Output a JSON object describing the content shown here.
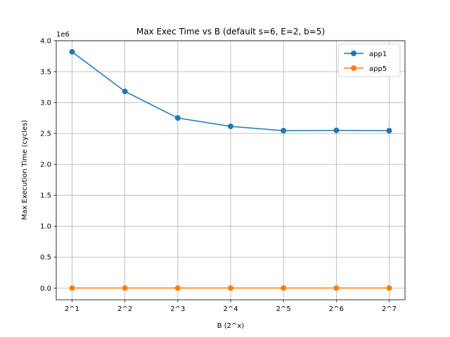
{
  "chart_data": {
    "type": "line",
    "title": "Max Exec Time vs B (default s=6, E=2, b=5)",
    "xlabel": "B (2^x)",
    "ylabel": "Max Execution Time (cycles)",
    "offset_text": "1e6",
    "categories": [
      "2^1",
      "2^2",
      "2^3",
      "2^4",
      "2^5",
      "2^6",
      "2^7"
    ],
    "y_ticks": [
      0.0,
      0.5,
      1.0,
      1.5,
      2.0,
      2.5,
      3.0,
      3.5,
      4.0
    ],
    "y_tick_labels": [
      "0.0",
      "0.5",
      "1.0",
      "1.5",
      "2.0",
      "2.5",
      "3.0",
      "3.5",
      "4.0"
    ],
    "ylim": [
      -0.19,
      4.0
    ],
    "y_scale": 1000000,
    "grid": true,
    "legend_position": "top-right",
    "series": [
      {
        "name": "app1",
        "color": "#1f77b4",
        "values": [
          3820000,
          3180000,
          2750000,
          2615000,
          2545000,
          2550000,
          2545000
        ]
      },
      {
        "name": "app5",
        "color": "#ff7f0e",
        "values": [
          0,
          0,
          0,
          0,
          0,
          0,
          0
        ]
      }
    ]
  }
}
